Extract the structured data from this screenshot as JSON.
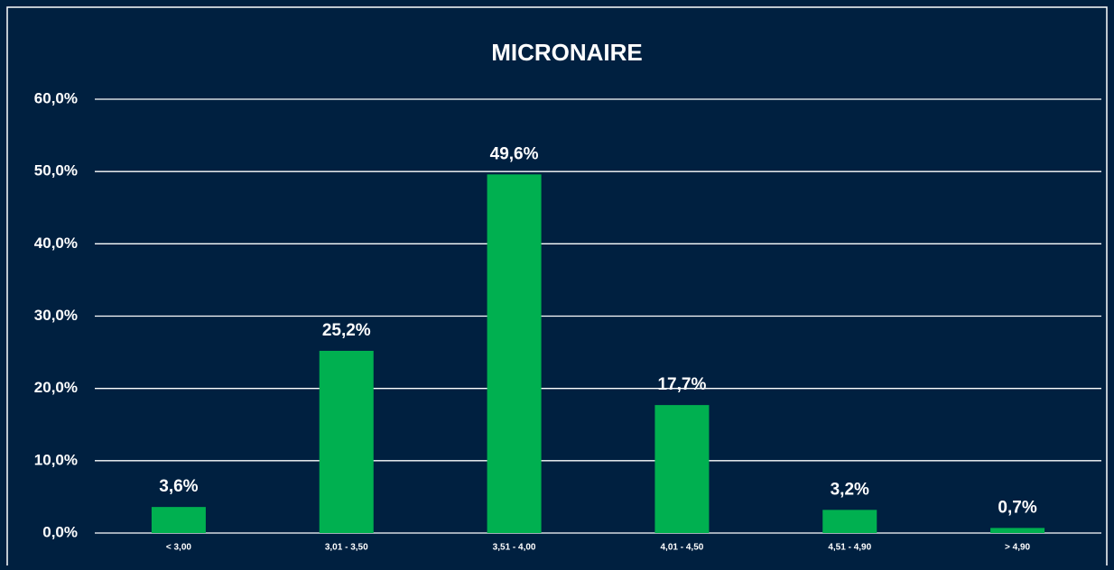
{
  "chart_data": {
    "type": "bar",
    "title": "MICRONAIRE",
    "categories": [
      "< 3,00",
      "3,01 - 3,50",
      "3,51 - 4,00",
      "4,01 - 4,50",
      "4,51 - 4,90",
      "> 4,90"
    ],
    "values": [
      3.6,
      25.2,
      49.6,
      17.7,
      3.2,
      0.7
    ],
    "value_labels": [
      "3,6%",
      "25,2%",
      "49,6%",
      "17,7%",
      "3,2%",
      "0,7%"
    ],
    "color": "#00b050",
    "ylim": [
      0,
      60
    ],
    "yticks": [
      {
        "value": 0,
        "label": "0,0%"
      },
      {
        "value": 10,
        "label": "10,0%"
      },
      {
        "value": 20,
        "label": "20,0%"
      },
      {
        "value": 30,
        "label": "30,0%"
      },
      {
        "value": 40,
        "label": "40,0%"
      },
      {
        "value": 50,
        "label": "50,0%"
      },
      {
        "value": 60,
        "label": "60,0%"
      }
    ],
    "grid": true
  }
}
